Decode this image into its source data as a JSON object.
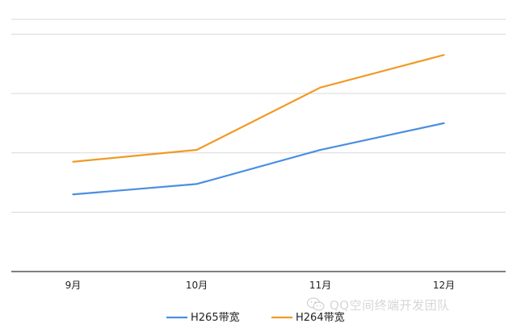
{
  "chart_data": {
    "type": "line",
    "categories": [
      "9月",
      "10月",
      "11月",
      "12月"
    ],
    "series": [
      {
        "name": "H265带宽",
        "values": [
          2.6,
          2.95,
          4.1,
          5.0
        ],
        "color": "#4a8fe2"
      },
      {
        "name": "H264带宽",
        "values": [
          3.7,
          4.1,
          6.2,
          7.3
        ],
        "color": "#f19a26"
      }
    ],
    "ylim": [
      0,
      8.5
    ],
    "ygrid_step": 2,
    "grid": true,
    "legend": "bottom-center",
    "title": "",
    "xlabel": "",
    "ylabel": ""
  },
  "watermark": {
    "text": "QQ空间终端开发团队",
    "icon": "wechat-icon"
  }
}
